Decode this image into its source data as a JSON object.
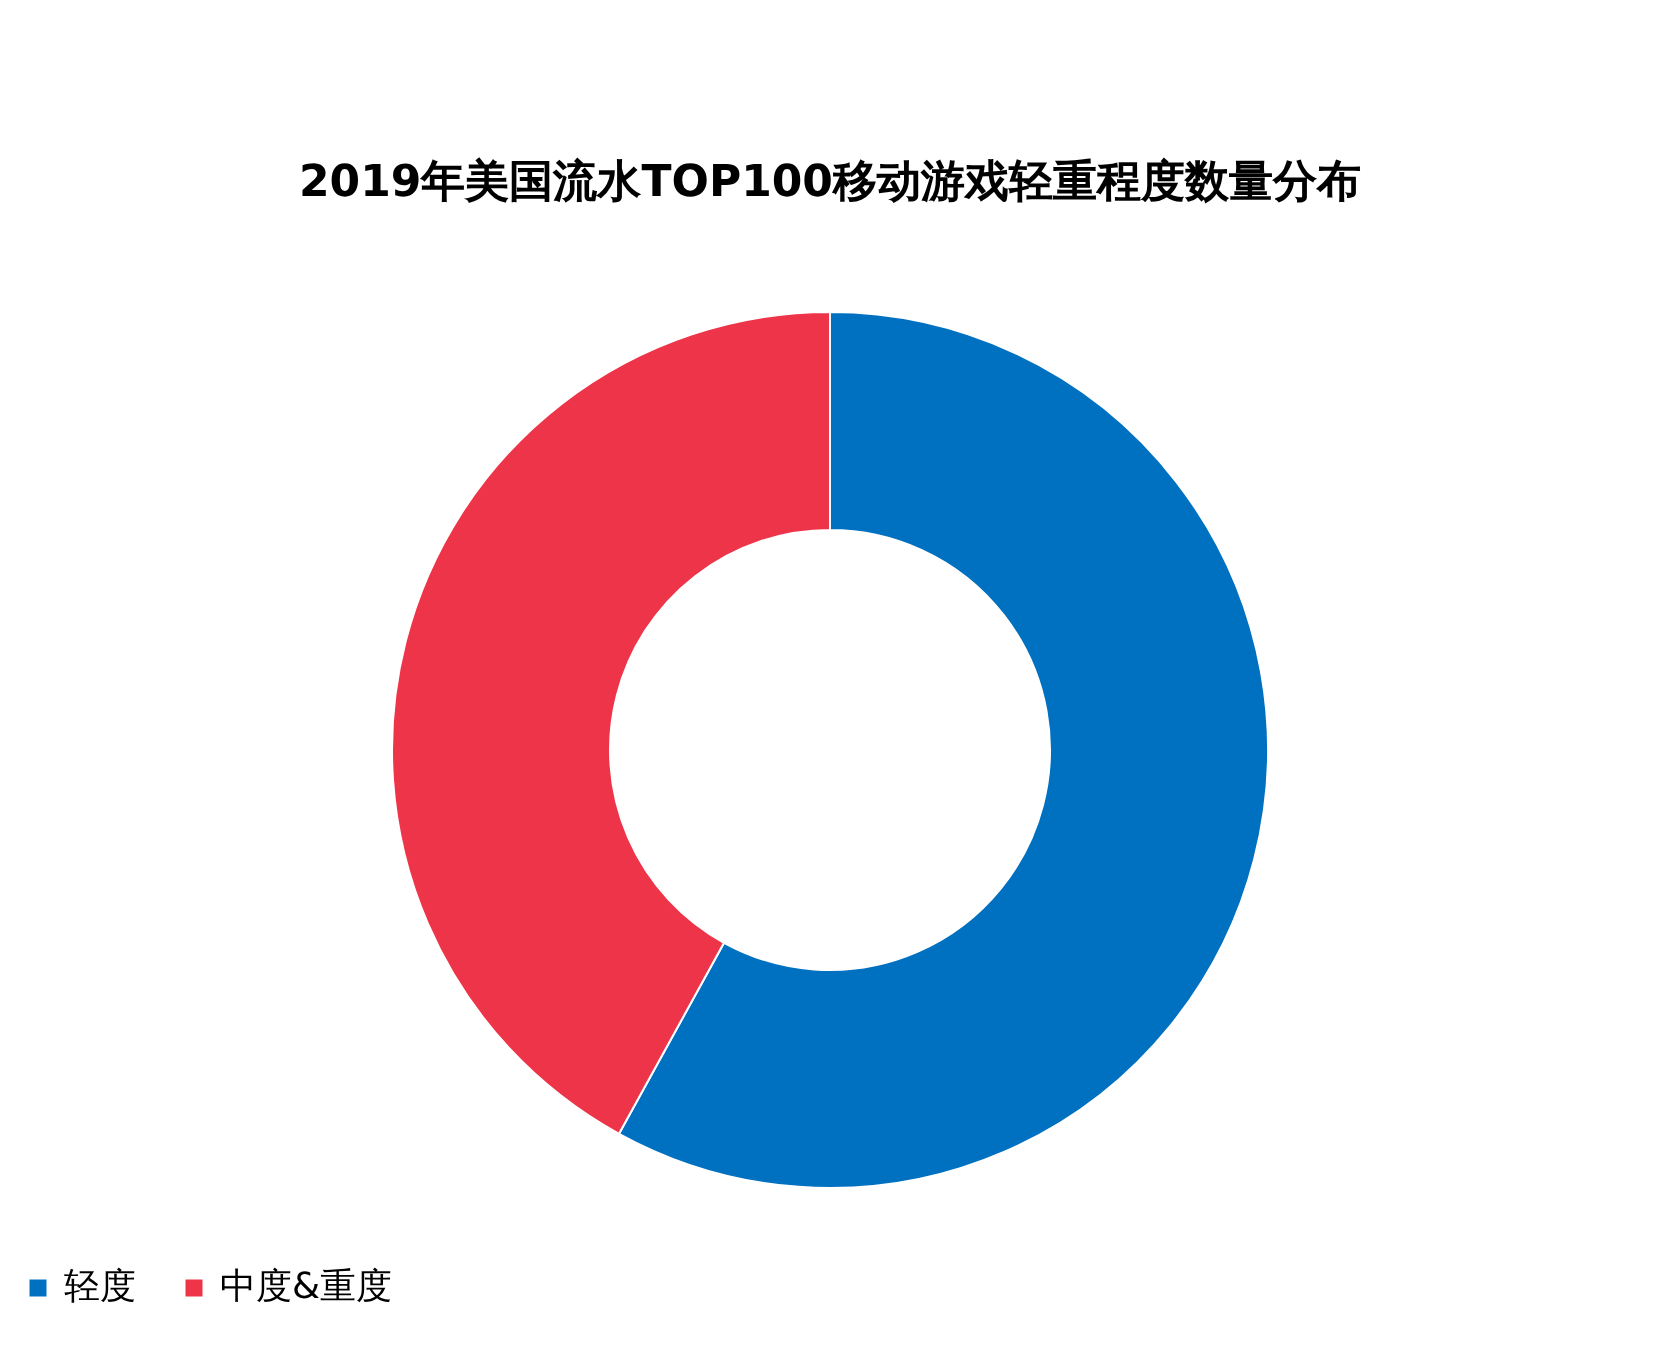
{
  "chart_data": {
    "type": "donut",
    "title": "2019年美国流水TOP100移动游戏轻重程度数量分布",
    "categories": [
      "轻度",
      "中度&重度"
    ],
    "values": [
      58,
      42
    ],
    "colors": [
      "#0070c0",
      "#ee3448"
    ],
    "legend": "bottom"
  }
}
